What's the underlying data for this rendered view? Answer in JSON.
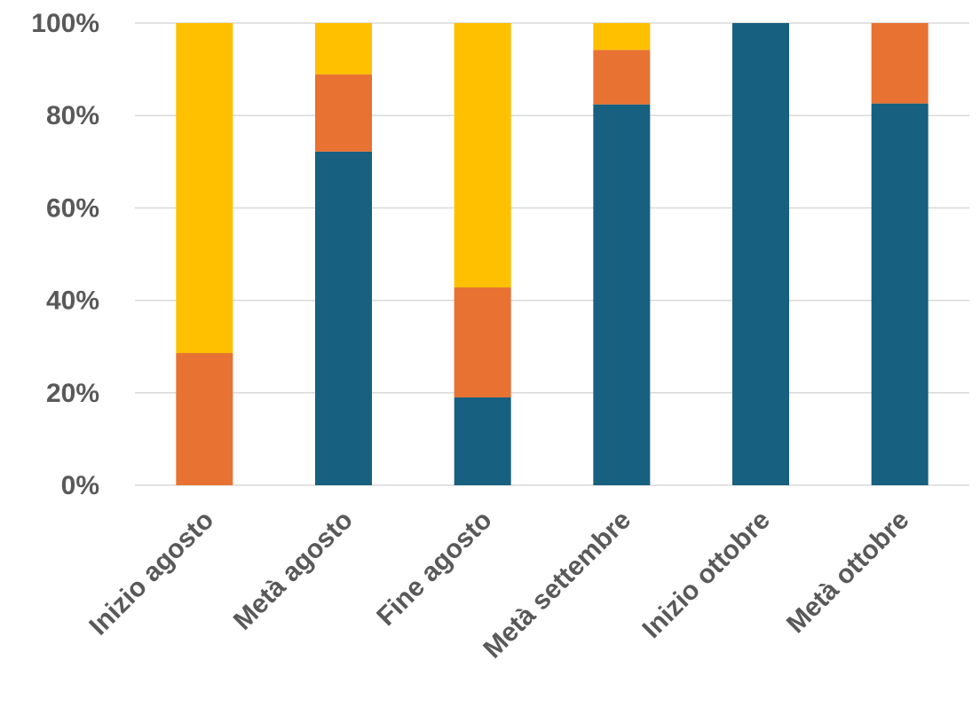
{
  "chart_data": {
    "type": "bar",
    "stacked": true,
    "normalized": true,
    "title": "",
    "xlabel": "",
    "ylabel": "",
    "ylim": [
      0,
      100
    ],
    "y_ticks": [
      "0%",
      "20%",
      "40%",
      "60%",
      "80%",
      "100%"
    ],
    "categories": [
      "Inizio agosto",
      "Metà agosto",
      "Fine agosto",
      "Metà settembre",
      "Inizio ottobre",
      "Metà ottobre"
    ],
    "series": [
      {
        "color": "#17607f",
        "values": [
          0,
          72.2,
          19.0,
          82.4,
          100,
          82.6
        ]
      },
      {
        "color": "#e87232",
        "values": [
          28.6,
          16.7,
          23.8,
          11.8,
          0,
          17.4
        ]
      },
      {
        "color": "#ffc000",
        "values": [
          71.4,
          11.1,
          57.2,
          5.8,
          0,
          0
        ]
      }
    ],
    "grid": true,
    "legend": "none"
  }
}
